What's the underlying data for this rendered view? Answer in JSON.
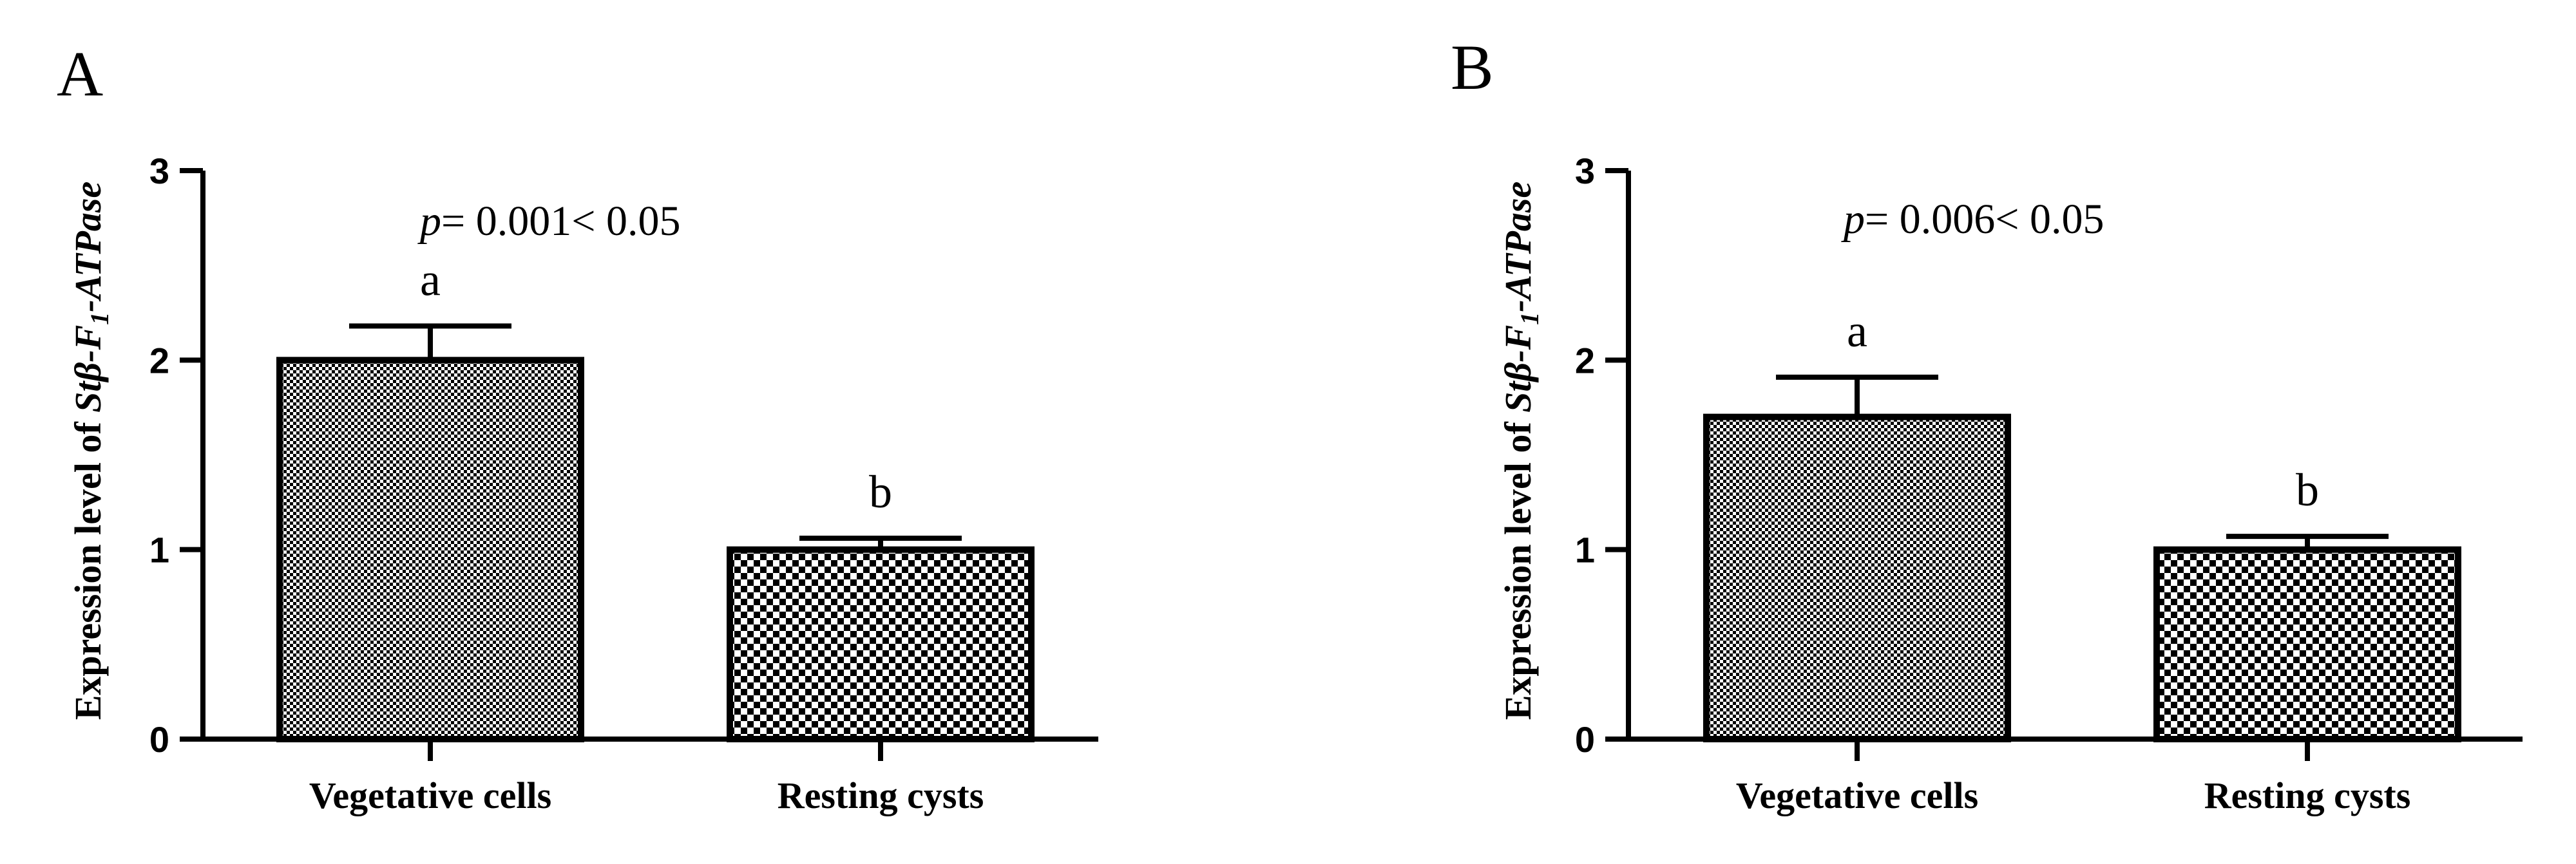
{
  "chart_data": [
    {
      "panel": "A",
      "type": "bar",
      "categories": [
        "Vegetative cells",
        "Resting cysts"
      ],
      "values": [
        2.0,
        1.0
      ],
      "errors": [
        0.18,
        0.06
      ],
      "significance": [
        "a",
        "b"
      ],
      "annotation": {
        "p_symbol": "p",
        "text": "= 0.001< 0.05"
      },
      "ylabel": {
        "prefix": "Expression  level of ",
        "gene": "Stβ-F",
        "sub": "1",
        "suffix": "-ATPase"
      },
      "ylim": [
        0,
        3
      ],
      "yticks": [
        "0",
        "1",
        "2",
        "3"
      ],
      "grid": false
    },
    {
      "panel": "B",
      "type": "bar",
      "categories": [
        "Vegetative cells",
        "Resting cysts"
      ],
      "values": [
        1.7,
        1.0
      ],
      "errors": [
        0.21,
        0.07
      ],
      "significance": [
        "a",
        "b"
      ],
      "annotation": {
        "p_symbol": "p",
        "text": "= 0.006< 0.05"
      },
      "ylabel": {
        "prefix": "Expression  level of ",
        "gene": "Stβ-F",
        "sub": "1",
        "suffix": "-ATPase"
      },
      "ylim": [
        0,
        3
      ],
      "yticks": [
        "0",
        "1",
        "2",
        "3"
      ],
      "grid": false
    }
  ],
  "colors": {
    "ink": "#000000",
    "background": "#ffffff"
  }
}
